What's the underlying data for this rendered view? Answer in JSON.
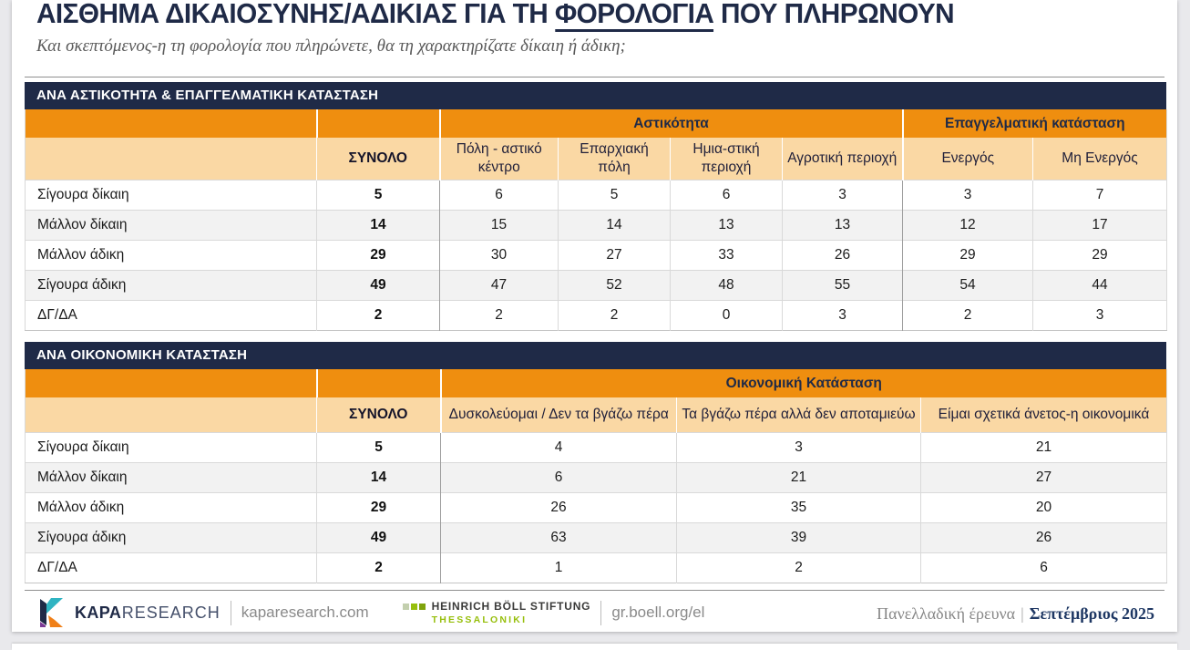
{
  "header": {
    "title_pre": "ΑΙΣΘΗΜΑ ΔΙΚΑΙΟΣΥΝΗΣ/ΑΔΙΚΙΑΣ ΓΙΑ ΤΗ ",
    "title_underlined": "ΦΟΡΟΛΟΓΙΑ",
    "title_post": " ΠΟΥ ΠΛΗΡΩΝΟΥΝ",
    "subtitle": "Και σκεπτόμενος-η τη φορολογία που πληρώνετε, θα τη χαρακτηρίζατε δίκαιη ή άδικη;"
  },
  "tables": {
    "table1": {
      "section_title": "ΑΝΑ ΑΣΤΙΚΟΤΗΤΑ & ΕΠΑΓΓΕΛΜΑΤΙΚΗ ΚΑΤΑΣΤΑΣΗ",
      "groups": [
        {
          "label": "",
          "span": 1
        },
        {
          "label": "",
          "span": 1
        },
        {
          "label": "Αστικότητα",
          "span": 4
        },
        {
          "label": "Επαγγελματική κατάσταση",
          "span": 2
        }
      ],
      "columns": [
        "",
        "ΣΥΝΟΛΟ",
        "Πόλη - αστικό κέντρο",
        "Επαρχιακή πόλη",
        "Ημια-στική περιοχή",
        "Αγροτική περιοχή",
        "Ενεργός",
        "Μη Ενεργός"
      ],
      "rows": [
        {
          "label": "Σίγουρα δίκαιη",
          "values": [
            "5",
            "6",
            "5",
            "6",
            "3",
            "3",
            "7"
          ]
        },
        {
          "label": "Μάλλον δίκαιη",
          "values": [
            "14",
            "15",
            "14",
            "13",
            "13",
            "12",
            "17"
          ]
        },
        {
          "label": "Μάλλον άδικη",
          "values": [
            "29",
            "30",
            "27",
            "33",
            "26",
            "29",
            "29"
          ]
        },
        {
          "label": "Σίγουρα άδικη",
          "values": [
            "49",
            "47",
            "52",
            "48",
            "55",
            "54",
            "44"
          ]
        },
        {
          "label": "ΔΓ/ΔΑ",
          "values": [
            "2",
            "2",
            "2",
            "0",
            "3",
            "2",
            "3"
          ]
        }
      ]
    },
    "table2": {
      "section_title": "ΑΝΑ ΟΙΚΟΝΟΜΙΚΗ ΚΑΤΑΣΤΑΣΗ",
      "groups": [
        {
          "label": "",
          "span": 1
        },
        {
          "label": "",
          "span": 1
        },
        {
          "label": "Οικονομική Κατάσταση",
          "span": 3
        }
      ],
      "columns": [
        "",
        "ΣΥΝΟΛΟ",
        "Δυσκολεύομαι / Δεν τα βγάζω πέρα",
        "Τα βγάζω πέρα αλλά δεν αποταμιεύω",
        "Είμαι σχετικά άνετος-η οικονομικά"
      ],
      "rows": [
        {
          "label": "Σίγουρα δίκαιη",
          "values": [
            "5",
            "4",
            "3",
            "21"
          ]
        },
        {
          "label": "Μάλλον δίκαιη",
          "values": [
            "14",
            "6",
            "21",
            "27"
          ]
        },
        {
          "label": "Μάλλον άδικη",
          "values": [
            "29",
            "26",
            "35",
            "20"
          ]
        },
        {
          "label": "Σίγουρα άδικη",
          "values": [
            "49",
            "63",
            "39",
            "26"
          ]
        },
        {
          "label": "ΔΓ/ΔΑ",
          "values": [
            "2",
            "1",
            "2",
            "6"
          ]
        }
      ]
    }
  },
  "footer": {
    "kapa_brand_bold": "KAPA",
    "kapa_brand_light": "RESEARCH",
    "kapa_url": "kaparesearch.com",
    "hbs_line1": "HEINRICH BÖLL STIFTUNG",
    "hbs_line2": "THESSALONIKI",
    "hbs_url": "gr.boell.org/el",
    "right_gray": "Πανελλαδική έρευνα",
    "right_sep": "|",
    "right_bold": "Σεπτέμβριος 2025"
  },
  "colors": {
    "navy": "#1f2a47",
    "orange": "#ef8e0f",
    "peach": "#fad8a4",
    "alt_row": "#f2f2f2",
    "hbs_green": "#97bf0d",
    "footer_navy": "#1f3864"
  }
}
